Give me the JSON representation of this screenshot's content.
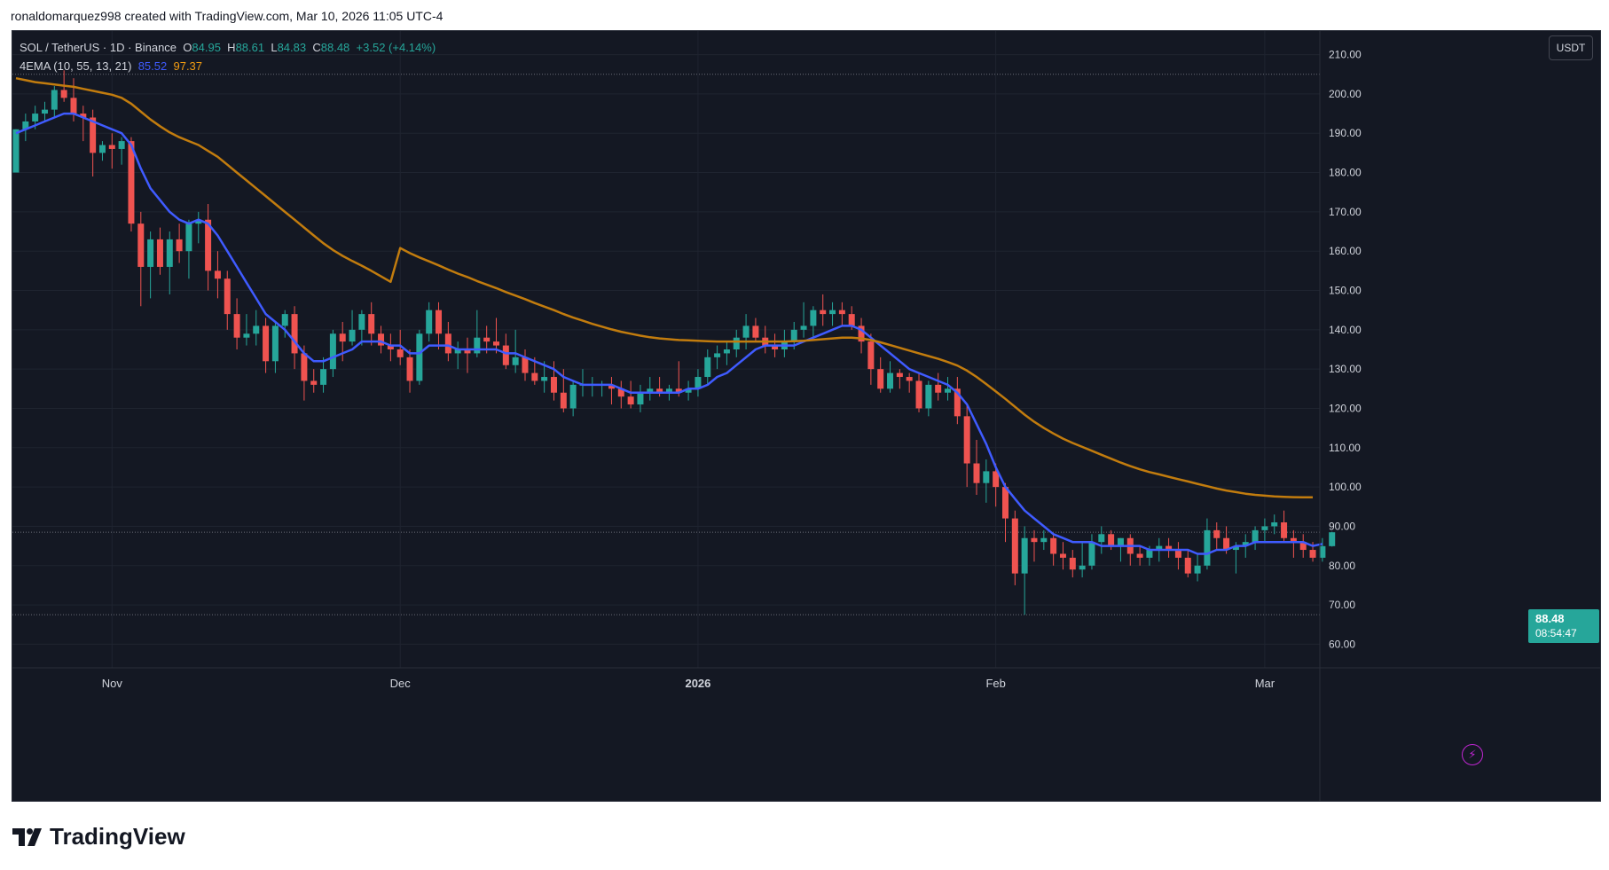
{
  "credit": "ronaldomarquez998 created with TradingView.com, Mar 10, 2026 11:05 UTC-4",
  "legend": {
    "symbol": "SOL / TetherUS · 1D · Binance",
    "o_label": "O",
    "o_value": "84.95",
    "h_label": "H",
    "h_value": "88.61",
    "l_label": "L",
    "l_value": "84.83",
    "c_label": "C",
    "c_value": "88.48",
    "change": "+3.52 (+4.14%)",
    "indicator": "4EMA (10, 55, 13, 21)",
    "ema_fast": "85.52",
    "ema_slow": "97.37"
  },
  "currency": "USDT",
  "last_price": {
    "price": "88.48",
    "countdown": "08:54:47"
  },
  "logo_text": "TradingView",
  "colors": {
    "up": "#26a69a",
    "down": "#ef5350",
    "ema_fast": "#3f5bff",
    "ema_slow": "#c27c0e",
    "background": "#141823",
    "grid": "#1f2430",
    "text": "#d1d4dc"
  },
  "icons": {
    "alert": "lightning-icon",
    "logo": "tradingview-logo-icon"
  },
  "chart_data": {
    "type": "candlestick",
    "title": "",
    "y_axis": {
      "ticks": [
        "60.00",
        "70.00",
        "80.00",
        "90.00",
        "100.00",
        "110.00",
        "120.00",
        "130.00",
        "140.00",
        "150.00",
        "160.00",
        "170.00",
        "180.00",
        "190.00",
        "200.00",
        "210.00"
      ],
      "range": [
        54,
        216
      ]
    },
    "x_axis": {
      "labels": [
        {
          "text": "Nov",
          "bold": false,
          "index": 10
        },
        {
          "text": "Dec",
          "bold": false,
          "index": 40
        },
        {
          "text": "2026",
          "bold": true,
          "index": 71
        },
        {
          "text": "Feb",
          "bold": false,
          "index": 102
        },
        {
          "text": "Mar",
          "bold": false,
          "index": 130
        }
      ]
    },
    "dotted_levels": [
      205,
      67.5,
      88.48
    ],
    "candles": [
      [
        180,
        191,
        180,
        191
      ],
      [
        191,
        195,
        188,
        193
      ],
      [
        193,
        197,
        191,
        195
      ],
      [
        195,
        198,
        193,
        196
      ],
      [
        196,
        202,
        194,
        201
      ],
      [
        201,
        206,
        198,
        199
      ],
      [
        199,
        204,
        193,
        195
      ],
      [
        195,
        197,
        188,
        194
      ],
      [
        194,
        196,
        179,
        185
      ],
      [
        185,
        188,
        183,
        187
      ],
      [
        187,
        190,
        181,
        186
      ],
      [
        186,
        189,
        182,
        188
      ],
      [
        188,
        189,
        165,
        167
      ],
      [
        167,
        170,
        146,
        156
      ],
      [
        156,
        165,
        148,
        163
      ],
      [
        163,
        166,
        154,
        156
      ],
      [
        156,
        165,
        149,
        163
      ],
      [
        163,
        167,
        157,
        160
      ],
      [
        160,
        168,
        153,
        167
      ],
      [
        167,
        170,
        162,
        168
      ],
      [
        168,
        172,
        150,
        155
      ],
      [
        155,
        160,
        148,
        153
      ],
      [
        153,
        155,
        140,
        144
      ],
      [
        144,
        148,
        135,
        138
      ],
      [
        138,
        144,
        136,
        139
      ],
      [
        139,
        145,
        136,
        141
      ],
      [
        141,
        143,
        129,
        132
      ],
      [
        132,
        142,
        129,
        141
      ],
      [
        141,
        145,
        138,
        144
      ],
      [
        144,
        146,
        130,
        134
      ],
      [
        134,
        136,
        122,
        127
      ],
      [
        127,
        130,
        124,
        126
      ],
      [
        126,
        133,
        124,
        130
      ],
      [
        130,
        140,
        128,
        139
      ],
      [
        139,
        142,
        132,
        137
      ],
      [
        137,
        145,
        136,
        140
      ],
      [
        140,
        145,
        136,
        144
      ],
      [
        144,
        147,
        136,
        139
      ],
      [
        139,
        141,
        134,
        136
      ],
      [
        136,
        139,
        132,
        135
      ],
      [
        135,
        140,
        131,
        133
      ],
      [
        133,
        135,
        124,
        127
      ],
      [
        127,
        140,
        126,
        139
      ],
      [
        139,
        147,
        137,
        145
      ],
      [
        145,
        147,
        135,
        139
      ],
      [
        139,
        142,
        132,
        134
      ],
      [
        134,
        137,
        130,
        135
      ],
      [
        135,
        138,
        129,
        134
      ],
      [
        134,
        145,
        133,
        138
      ],
      [
        138,
        141,
        134,
        137
      ],
      [
        137,
        143,
        134,
        136
      ],
      [
        136,
        139,
        130,
        131
      ],
      [
        131,
        140,
        129,
        133
      ],
      [
        133,
        135,
        127,
        129
      ],
      [
        129,
        133,
        126,
        127
      ],
      [
        127,
        132,
        124,
        128
      ],
      [
        128,
        132,
        122,
        124
      ],
      [
        124,
        130,
        119,
        120
      ],
      [
        120,
        127,
        118,
        126
      ],
      [
        126,
        130,
        123,
        126
      ],
      [
        126,
        128,
        123,
        126
      ],
      [
        126,
        127,
        123,
        126
      ],
      [
        126,
        128,
        121,
        125
      ],
      [
        125,
        127,
        120,
        123
      ],
      [
        123,
        127,
        120,
        121
      ],
      [
        121,
        126,
        119,
        124
      ],
      [
        124,
        128,
        122,
        125
      ],
      [
        125,
        128,
        123,
        124
      ],
      [
        124,
        126,
        122,
        125
      ],
      [
        125,
        132,
        123,
        124
      ],
      [
        124,
        127,
        122,
        125
      ],
      [
        125,
        130,
        123,
        128
      ],
      [
        128,
        135,
        126,
        133
      ],
      [
        133,
        136,
        130,
        134
      ],
      [
        134,
        137,
        131,
        135
      ],
      [
        135,
        140,
        133,
        138
      ],
      [
        138,
        144,
        135,
        141
      ],
      [
        141,
        143,
        137,
        138
      ],
      [
        138,
        141,
        134,
        136
      ],
      [
        136,
        139,
        133,
        135
      ],
      [
        135,
        140,
        133,
        137
      ],
      [
        137,
        142,
        135,
        140
      ],
      [
        140,
        147,
        138,
        141
      ],
      [
        141,
        146,
        138,
        145
      ],
      [
        145,
        149,
        141,
        144
      ],
      [
        144,
        147,
        141,
        145
      ],
      [
        145,
        147,
        141,
        144
      ],
      [
        144,
        146,
        140,
        141
      ],
      [
        141,
        143,
        134,
        137
      ],
      [
        137,
        139,
        126,
        130
      ],
      [
        130,
        133,
        124,
        125
      ],
      [
        125,
        132,
        124,
        129
      ],
      [
        129,
        130,
        125,
        128
      ],
      [
        128,
        129,
        124,
        127
      ],
      [
        127,
        129,
        119,
        120
      ],
      [
        120,
        127,
        118,
        126
      ],
      [
        126,
        129,
        122,
        124
      ],
      [
        124,
        128,
        122,
        125
      ],
      [
        125,
        128,
        116,
        118
      ],
      [
        118,
        121,
        100,
        106
      ],
      [
        106,
        112,
        98,
        101
      ],
      [
        101,
        107,
        96,
        104
      ],
      [
        104,
        106,
        95,
        100
      ],
      [
        100,
        101,
        86,
        92
      ],
      [
        92,
        94,
        75,
        78
      ],
      [
        78,
        90,
        67.5,
        87
      ],
      [
        87,
        89,
        81,
        86
      ],
      [
        86,
        89,
        84,
        87
      ],
      [
        87,
        88,
        80,
        83
      ],
      [
        83,
        86,
        79,
        82
      ],
      [
        82,
        84,
        77,
        79
      ],
      [
        79,
        86,
        77,
        80
      ],
      [
        80,
        88,
        79,
        86
      ],
      [
        86,
        90,
        83,
        88
      ],
      [
        88,
        89,
        84,
        85
      ],
      [
        85,
        87,
        81,
        87
      ],
      [
        87,
        88,
        80,
        83
      ],
      [
        83,
        85,
        80,
        82
      ],
      [
        82,
        85,
        80,
        84
      ],
      [
        84,
        87,
        81,
        85
      ],
      [
        85,
        87,
        82,
        84
      ],
      [
        84,
        86,
        79,
        82
      ],
      [
        82,
        84,
        77,
        78
      ],
      [
        78,
        83,
        76,
        80
      ],
      [
        80,
        92,
        79,
        89
      ],
      [
        89,
        91,
        84,
        87
      ],
      [
        87,
        90,
        83,
        84
      ],
      [
        84,
        86,
        78,
        85
      ],
      [
        85,
        88,
        82,
        86
      ],
      [
        86,
        90,
        84,
        89
      ],
      [
        89,
        92,
        86,
        90
      ],
      [
        90,
        93,
        88,
        91
      ],
      [
        91,
        94,
        86,
        87
      ],
      [
        87,
        89,
        82,
        86
      ],
      [
        86,
        88,
        82,
        84
      ],
      [
        84,
        86,
        81,
        82
      ],
      [
        82,
        87,
        81,
        84.95
      ],
      [
        84.95,
        88.61,
        84.83,
        88.48
      ]
    ],
    "series": [
      {
        "indicator": "EMA fast",
        "values": [
          190,
          191,
          192,
          193,
          194,
          195,
          195,
          194,
          193,
          192,
          191,
          190,
          187,
          181,
          176,
          173,
          170,
          168,
          167,
          168,
          167,
          164,
          160,
          156,
          152,
          148,
          144,
          142,
          140,
          137,
          134,
          132,
          132,
          133,
          134,
          135,
          137,
          137,
          137,
          136,
          136,
          134,
          134,
          136,
          136,
          136,
          135,
          135,
          135,
          135,
          135,
          134,
          134,
          133,
          132,
          131,
          130,
          128,
          127,
          126,
          126,
          126,
          126,
          125,
          124,
          124,
          124,
          124,
          124,
          124,
          125,
          125,
          126,
          128,
          129,
          131,
          133,
          135,
          136,
          136,
          136,
          136,
          137,
          138,
          139,
          140,
          141,
          141,
          140,
          138,
          136,
          134,
          132,
          130,
          129,
          128,
          127,
          126,
          124,
          121,
          116,
          111,
          105,
          100,
          97,
          94,
          92,
          90,
          88,
          87,
          86,
          86,
          86,
          85,
          85,
          85,
          85,
          85,
          84,
          84,
          84,
          84,
          84,
          83,
          83,
          84,
          84,
          85,
          85,
          86,
          86,
          86,
          86,
          86,
          86,
          85,
          85.52
        ]
      },
      {
        "indicator": "EMA slow",
        "values": [
          204,
          203.5,
          203,
          202.7,
          202.4,
          202.1,
          201.8,
          201.3,
          200.8,
          200.3,
          199.8,
          199,
          197.5,
          195.5,
          193.5,
          191.8,
          190.2,
          189,
          188,
          187,
          185.5,
          184,
          182,
          180,
          178,
          176,
          174,
          172,
          170,
          168,
          166,
          164,
          162,
          160.3,
          158.8,
          157.5,
          156.3,
          155,
          153.6,
          152.2,
          160.8,
          159.5,
          158.4,
          157.4,
          156.4,
          155.3,
          154.3,
          153.4,
          152.4,
          151.5,
          150.6,
          149.6,
          148.7,
          147.8,
          146.8,
          145.9,
          145,
          144,
          143.1,
          142.3,
          141.5,
          140.8,
          140.1,
          139.5,
          139,
          138.5,
          138.1,
          137.8,
          137.6,
          137.4,
          137.3,
          137.2,
          137.1,
          137,
          137,
          137,
          137,
          137,
          137,
          137,
          137,
          137.1,
          137.2,
          137.4,
          137.6,
          137.8,
          138,
          138,
          137.8,
          137.4,
          136.8,
          136.1,
          135.4,
          134.7,
          134,
          133.3,
          132.6,
          131.8,
          130.9,
          129.6,
          128,
          126.2,
          124.3,
          122.4,
          120.4,
          118.4,
          116.6,
          115,
          113.6,
          112.3,
          111.2,
          110.2,
          109.2,
          108.2,
          107.2,
          106.2,
          105.3,
          104.5,
          103.8,
          103.2,
          102.6,
          102,
          101.4,
          100.8,
          100.2,
          99.6,
          99.1,
          98.7,
          98.3,
          98,
          97.8,
          97.6,
          97.5,
          97.4,
          97.37,
          97.37
        ]
      }
    ]
  }
}
